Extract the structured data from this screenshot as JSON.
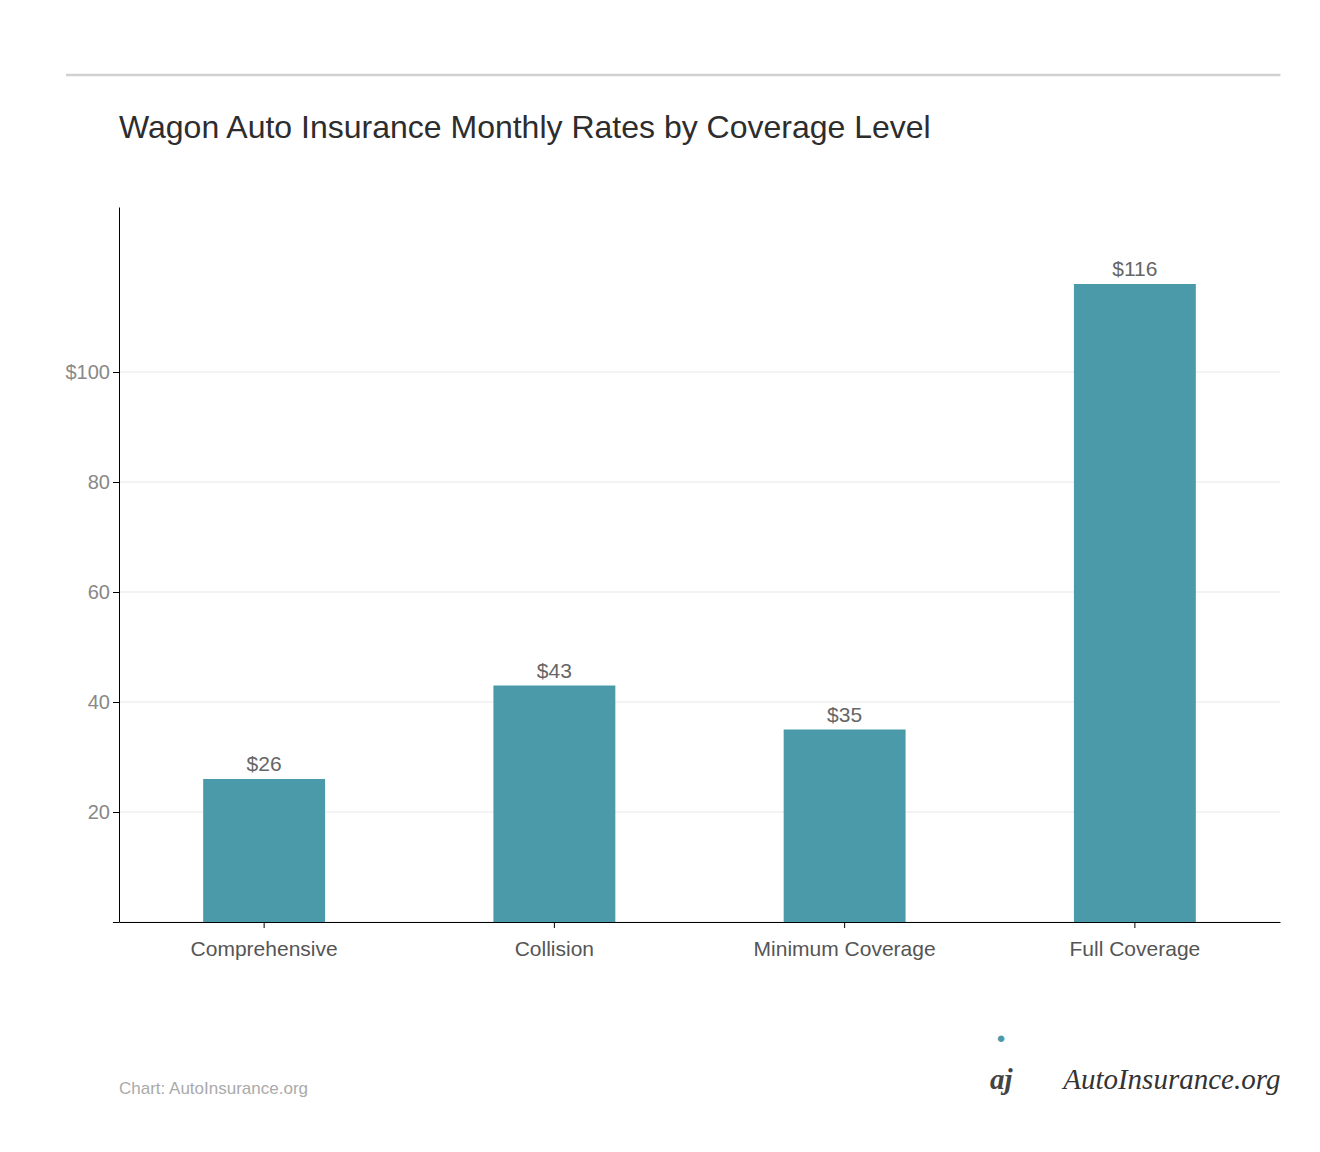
{
  "chart_data": {
    "type": "bar",
    "title": "Wagon Auto Insurance Monthly Rates by Coverage Level",
    "categories": [
      "Comprehensive",
      "Collision",
      "Minimum Coverage",
      "Full Coverage"
    ],
    "values": [
      26,
      43,
      35,
      116
    ],
    "value_labels": [
      "$26",
      "$43",
      "$35",
      "$116"
    ],
    "data_labels": true,
    "color": "#4a9aaa",
    "ylim": [
      0,
      130
    ],
    "yticks": [
      {
        "value": 0,
        "label": ""
      },
      20,
      40,
      60,
      80,
      {
        "value": 100,
        "label": "$100"
      }
    ],
    "grid": true,
    "annotations": [
      "Chart: AutoInsurance.org",
      "●",
      "aj",
      "AutoInsurance.org"
    ]
  }
}
